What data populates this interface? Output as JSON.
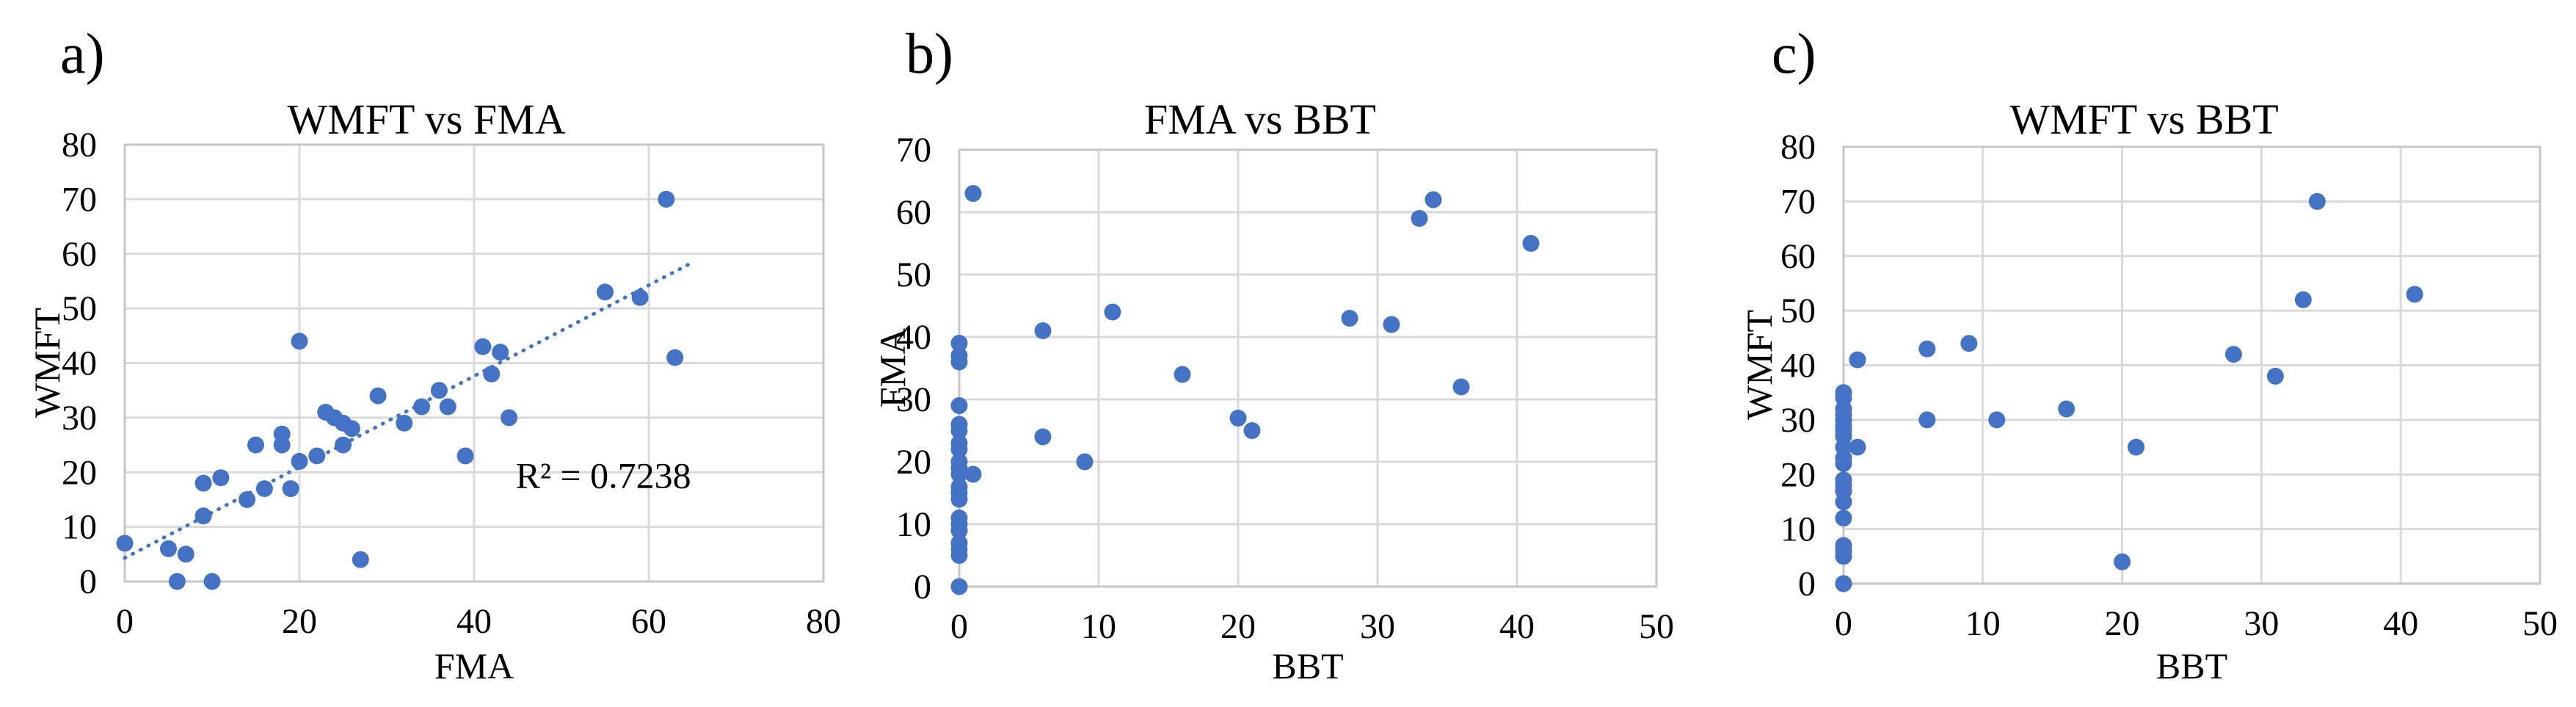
{
  "figure": {
    "background": "#FFFFFF",
    "point_color": "#4472C4",
    "trendline_color": "#4472C4",
    "gridline_color": "#D9D9D9",
    "border_color": "#C6C6C6",
    "text_color": "#000000"
  },
  "chart_data": [
    {
      "type": "scatter",
      "panel_label": "a)",
      "title": "WMFT vs FMA",
      "xlabel": "FMA",
      "ylabel": "WMFT",
      "xlim": [
        0,
        80
      ],
      "ylim": [
        0,
        80
      ],
      "x_ticks": [
        0,
        20,
        40,
        60,
        80
      ],
      "y_ticks": [
        0,
        10,
        20,
        30,
        40,
        50,
        60,
        70,
        80
      ],
      "grid": true,
      "points": [
        [
          0,
          7
        ],
        [
          5,
          6
        ],
        [
          6,
          0
        ],
        [
          7,
          5
        ],
        [
          9,
          12
        ],
        [
          9,
          18
        ],
        [
          10,
          0
        ],
        [
          11,
          19
        ],
        [
          14,
          15
        ],
        [
          15,
          25
        ],
        [
          16,
          17
        ],
        [
          18,
          25
        ],
        [
          18,
          27
        ],
        [
          19,
          17
        ],
        [
          20,
          22
        ],
        [
          20,
          44
        ],
        [
          22,
          23
        ],
        [
          23,
          31
        ],
        [
          24,
          30
        ],
        [
          25,
          25
        ],
        [
          25,
          29
        ],
        [
          26,
          28
        ],
        [
          27,
          4
        ],
        [
          29,
          34
        ],
        [
          32,
          29
        ],
        [
          34,
          32
        ],
        [
          36,
          35
        ],
        [
          37,
          32
        ],
        [
          39,
          23
        ],
        [
          41,
          43
        ],
        [
          42,
          38
        ],
        [
          43,
          42
        ],
        [
          44,
          30
        ],
        [
          55,
          53
        ],
        [
          59,
          52
        ],
        [
          62,
          70
        ],
        [
          63,
          41
        ]
      ],
      "trendline": {
        "style": "dotted",
        "start": [
          0,
          4.3
        ],
        "end": [
          64.5,
          58
        ]
      },
      "annotation": {
        "text": "R² = 0.7238",
        "position": [
          54.8,
          19.4
        ]
      }
    },
    {
      "type": "scatter",
      "panel_label": "b)",
      "title": "FMA vs BBT",
      "xlabel": "BBT",
      "ylabel": "FMA",
      "xlim": [
        0,
        50
      ],
      "ylim": [
        0,
        70
      ],
      "x_ticks": [
        0,
        10,
        20,
        30,
        40,
        50
      ],
      "y_ticks": [
        0,
        10,
        20,
        30,
        40,
        50,
        60,
        70
      ],
      "grid": true,
      "points": [
        [
          0,
          0
        ],
        [
          0,
          5
        ],
        [
          0,
          6
        ],
        [
          0,
          7
        ],
        [
          0,
          9
        ],
        [
          0,
          9
        ],
        [
          0,
          10
        ],
        [
          0,
          11
        ],
        [
          0,
          14
        ],
        [
          0,
          15
        ],
        [
          0,
          16
        ],
        [
          0,
          18
        ],
        [
          0,
          19
        ],
        [
          0,
          20
        ],
        [
          0,
          22
        ],
        [
          0,
          23
        ],
        [
          0,
          25
        ],
        [
          0,
          26
        ],
        [
          0,
          29
        ],
        [
          0,
          36
        ],
        [
          0,
          37
        ],
        [
          0,
          39
        ],
        [
          1,
          18
        ],
        [
          1,
          63
        ],
        [
          6,
          24
        ],
        [
          6,
          41
        ],
        [
          9,
          20
        ],
        [
          11,
          44
        ],
        [
          16,
          34
        ],
        [
          20,
          27
        ],
        [
          21,
          25
        ],
        [
          28,
          43
        ],
        [
          31,
          42
        ],
        [
          33,
          59
        ],
        [
          34,
          62
        ],
        [
          36,
          32
        ],
        [
          41,
          55
        ]
      ]
    },
    {
      "type": "scatter",
      "panel_label": "c)",
      "title": "WMFT vs BBT",
      "xlabel": "BBT",
      "ylabel": "WMFT",
      "xlim": [
        0,
        50
      ],
      "ylim": [
        0,
        80
      ],
      "x_ticks": [
        0,
        10,
        20,
        30,
        40,
        50
      ],
      "y_ticks": [
        0,
        10,
        20,
        30,
        40,
        50,
        60,
        70,
        80
      ],
      "grid": true,
      "points": [
        [
          0,
          0
        ],
        [
          0,
          0
        ],
        [
          0,
          5
        ],
        [
          0,
          6
        ],
        [
          0,
          7
        ],
        [
          0,
          12
        ],
        [
          0,
          15
        ],
        [
          0,
          17
        ],
        [
          0,
          17
        ],
        [
          0,
          18
        ],
        [
          0,
          19
        ],
        [
          0,
          22
        ],
        [
          0,
          23
        ],
        [
          0,
          23
        ],
        [
          0,
          25
        ],
        [
          0,
          27
        ],
        [
          0,
          28
        ],
        [
          0,
          29
        ],
        [
          0,
          30
        ],
        [
          0,
          31
        ],
        [
          0,
          32
        ],
        [
          0,
          34
        ],
        [
          0,
          35
        ],
        [
          1,
          25
        ],
        [
          1,
          41
        ],
        [
          6,
          30
        ],
        [
          6,
          43
        ],
        [
          9,
          44
        ],
        [
          11,
          30
        ],
        [
          16,
          32
        ],
        [
          20,
          4
        ],
        [
          21,
          25
        ],
        [
          28,
          42
        ],
        [
          31,
          38
        ],
        [
          33,
          52
        ],
        [
          34,
          70
        ],
        [
          41,
          53
        ]
      ]
    }
  ]
}
